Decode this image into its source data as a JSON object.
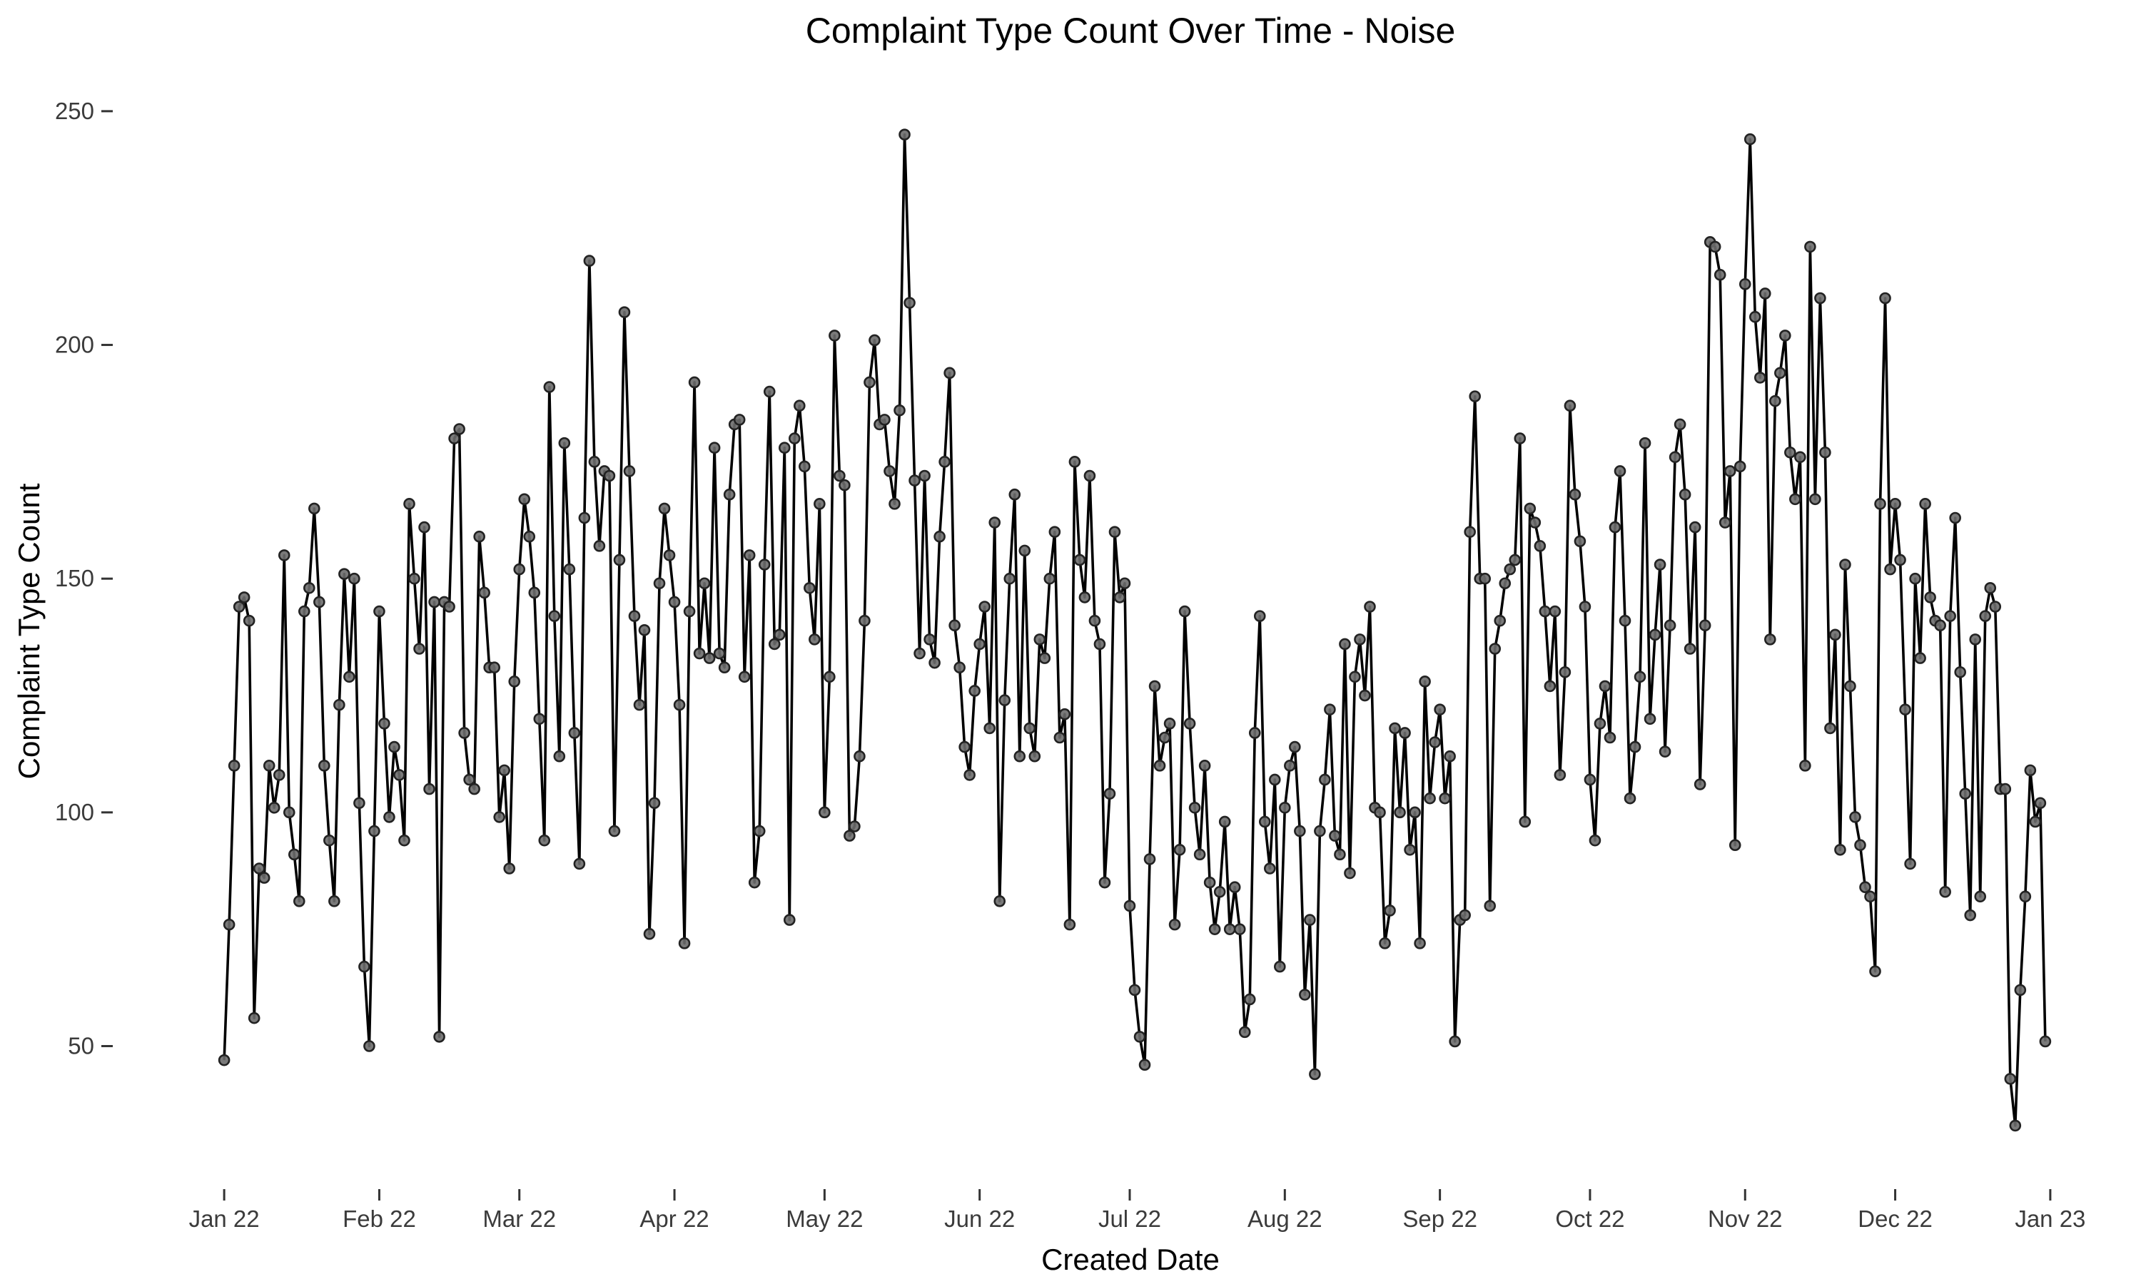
{
  "chart_data": {
    "type": "line",
    "title": "Complaint Type Count Over Time - Noise",
    "xlabel": "Created Date",
    "ylabel": "Complaint Type Count",
    "x_start": "2022-01-01",
    "x_end": "2022-12-31",
    "xlim": [
      "2021-12-20",
      "2023-01-12"
    ],
    "ylim": [
      22,
      257
    ],
    "grid": false,
    "legend": "none",
    "x_ticks": [
      {
        "date": "2022-01-01",
        "label": "Jan 22"
      },
      {
        "date": "2022-02-01",
        "label": "Feb 22"
      },
      {
        "date": "2022-03-01",
        "label": "Mar 22"
      },
      {
        "date": "2022-04-01",
        "label": "Apr 22"
      },
      {
        "date": "2022-05-01",
        "label": "May 22"
      },
      {
        "date": "2022-06-01",
        "label": "Jun 22"
      },
      {
        "date": "2022-07-01",
        "label": "Jul 22"
      },
      {
        "date": "2022-08-01",
        "label": "Aug 22"
      },
      {
        "date": "2022-09-01",
        "label": "Sep 22"
      },
      {
        "date": "2022-10-01",
        "label": "Oct 22"
      },
      {
        "date": "2022-11-01",
        "label": "Nov 22"
      },
      {
        "date": "2022-12-01",
        "label": "Dec 22"
      },
      {
        "date": "2023-01-01",
        "label": "Jan 23"
      }
    ],
    "y_ticks": [
      {
        "value": 50,
        "label": "50"
      },
      {
        "value": 100,
        "label": "100"
      },
      {
        "value": 150,
        "label": "150"
      },
      {
        "value": 200,
        "label": "200"
      },
      {
        "value": 250,
        "label": "250"
      }
    ],
    "colors": {
      "line": "#000000",
      "point_fill": "#6b6b6b",
      "point_stroke": "#222222",
      "axis_text": "#3b3b3b"
    },
    "series": [
      {
        "values": [
          47,
          76,
          110,
          144,
          146,
          141,
          56,
          88,
          86,
          110,
          101,
          108,
          155,
          100,
          91,
          81,
          143,
          148,
          165,
          145,
          110,
          94,
          81,
          123,
          151,
          129,
          150,
          102,
          67,
          50,
          96,
          143,
          119,
          99,
          114,
          108,
          94,
          166,
          150,
          135,
          161,
          105,
          145,
          52,
          145,
          144,
          180,
          182,
          117,
          107,
          105,
          159,
          147,
          131,
          131,
          99,
          109,
          88,
          128,
          152,
          167,
          159,
          147,
          120,
          94,
          191,
          142,
          112,
          179,
          152,
          117,
          89,
          163,
          218,
          175,
          157,
          173,
          172,
          96,
          154,
          207,
          173,
          142,
          123,
          139,
          74,
          102,
          149,
          165,
          155,
          145,
          123,
          72,
          143,
          192,
          134,
          149,
          133,
          178,
          134,
          131,
          168,
          183,
          184,
          129,
          155,
          85,
          96,
          153,
          190,
          136,
          138,
          178,
          77,
          180,
          187,
          174,
          148,
          137,
          166,
          100,
          129,
          202,
          172,
          170,
          95,
          97,
          112,
          141,
          192,
          201,
          183,
          184,
          173,
          166,
          186,
          245,
          209,
          171,
          134,
          172,
          137,
          132,
          159,
          175,
          194,
          140,
          131,
          114,
          108,
          126,
          136,
          144,
          118,
          162,
          81,
          124,
          150,
          168,
          112,
          156,
          118,
          112,
          137,
          133,
          150,
          160,
          116,
          121,
          76,
          175,
          154,
          146,
          172,
          141,
          136,
          85,
          104,
          160,
          146,
          149,
          80,
          62,
          52,
          46,
          90,
          127,
          110,
          116,
          119,
          76,
          92,
          143,
          119,
          101,
          91,
          110,
          85,
          75,
          83,
          98,
          75,
          84,
          75,
          53,
          60,
          117,
          142,
          98,
          88,
          107,
          67,
          101,
          110,
          114,
          96,
          61,
          77,
          44,
          96,
          107,
          122,
          95,
          91,
          136,
          87,
          129,
          137,
          125,
          144,
          101,
          100,
          72,
          79,
          118,
          100,
          117,
          92,
          100,
          72,
          128,
          103,
          115,
          122,
          103,
          112,
          51,
          77,
          78,
          160,
          189,
          150,
          150,
          80,
          135,
          141,
          149,
          152,
          154,
          180,
          98,
          165,
          162,
          157,
          143,
          127,
          143,
          108,
          130,
          187,
          168,
          158,
          144,
          107,
          94,
          119,
          127,
          116,
          161,
          173,
          141,
          103,
          114,
          129,
          179,
          120,
          138,
          153,
          113,
          140,
          176,
          183,
          168,
          135,
          161,
          106,
          140,
          222,
          221,
          215,
          162,
          173,
          93,
          174,
          213,
          244,
          206,
          193,
          211,
          137,
          188,
          194,
          202,
          177,
          167,
          176,
          110,
          221,
          167,
          210,
          177,
          118,
          138,
          92,
          153,
          127,
          99,
          93,
          84,
          82,
          66,
          166,
          210,
          152,
          166,
          154,
          122,
          89,
          150,
          133,
          166,
          146,
          141,
          140,
          83,
          142,
          163,
          130,
          104,
          78,
          137,
          82,
          142,
          148,
          144,
          105,
          105,
          43,
          33,
          62,
          82,
          109,
          98,
          102,
          51
        ]
      }
    ]
  }
}
